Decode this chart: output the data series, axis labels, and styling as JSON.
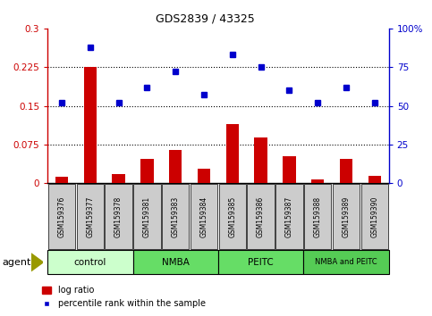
{
  "title": "GDS2839 / 43325",
  "samples": [
    "GSM159376",
    "GSM159377",
    "GSM159378",
    "GSM159381",
    "GSM159383",
    "GSM159384",
    "GSM159385",
    "GSM159386",
    "GSM159387",
    "GSM159388",
    "GSM159389",
    "GSM159390"
  ],
  "log_ratio": [
    0.012,
    0.225,
    0.018,
    0.048,
    0.065,
    0.028,
    0.115,
    0.088,
    0.052,
    0.008,
    0.048,
    0.015
  ],
  "percentile": [
    52,
    88,
    52,
    62,
    72,
    57,
    83,
    75,
    60,
    52,
    62,
    52
  ],
  "bar_color": "#cc0000",
  "dot_color": "#0000cc",
  "ylim_left": [
    0,
    0.3
  ],
  "ylim_right": [
    0,
    100
  ],
  "yticks_left": [
    0,
    0.075,
    0.15,
    0.225,
    0.3
  ],
  "ytick_labels_left": [
    "0",
    "0.075",
    "0.15",
    "0.225",
    "0.3"
  ],
  "yticks_right": [
    0,
    25,
    50,
    75,
    100
  ],
  "ytick_labels_right": [
    "0",
    "25",
    "50",
    "75",
    "100%"
  ],
  "grid_values": [
    0.075,
    0.15,
    0.225
  ],
  "groups": [
    {
      "label": "control",
      "start": 0,
      "end": 3,
      "color": "#ccffcc"
    },
    {
      "label": "NMBA",
      "start": 3,
      "end": 6,
      "color": "#66dd66"
    },
    {
      "label": "PEITC",
      "start": 6,
      "end": 9,
      "color": "#66dd66"
    },
    {
      "label": "NMBA and PEITC",
      "start": 9,
      "end": 12,
      "color": "#55cc55"
    }
  ],
  "agent_label": "agent",
  "legend_bar_label": "log ratio",
  "legend_dot_label": "percentile rank within the sample",
  "sample_box_color": "#cccccc",
  "plot_bg": "#ffffff"
}
